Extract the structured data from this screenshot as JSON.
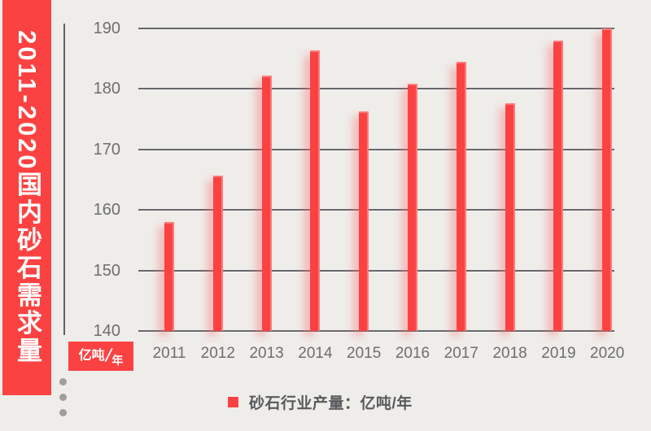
{
  "page": {
    "bg_color": "#efedea"
  },
  "banner": {
    "text": "2011-2020国内砂石需求量",
    "bg_color": "#fb4242",
    "text_color": "#ffffff"
  },
  "unit_badge": {
    "numerator": "亿吨",
    "slash": "/",
    "denominator": "年",
    "bg_color": "#fb4242"
  },
  "legend": {
    "marker_color": "#fb4242",
    "label": "砂石行业产量：亿吨/年"
  },
  "decoration": {
    "dot_color": "#9e9e9e",
    "dot_count": 3
  },
  "chart_data": {
    "type": "bar",
    "title": "2011-2020国内砂石需求量",
    "categories": [
      "2011",
      "2012",
      "2013",
      "2014",
      "2015",
      "2016",
      "2017",
      "2018",
      "2019",
      "2020"
    ],
    "series": [
      {
        "name": "砂石行业产量",
        "values": [
          158,
          165.7,
          182.2,
          186.4,
          176.3,
          180.8,
          184.5,
          177.7,
          188,
          190
        ]
      }
    ],
    "unit": "亿吨/年",
    "xlabel": "",
    "ylabel": "亿吨/年",
    "ylim": [
      140,
      190
    ],
    "yticks": [
      190,
      180,
      170,
      160,
      150,
      140
    ],
    "grid": true,
    "legend_position": "bottom",
    "bar_color": "#fb4242",
    "gridline_color": "#67686b",
    "tick_label_color": "#6e6e6e"
  }
}
